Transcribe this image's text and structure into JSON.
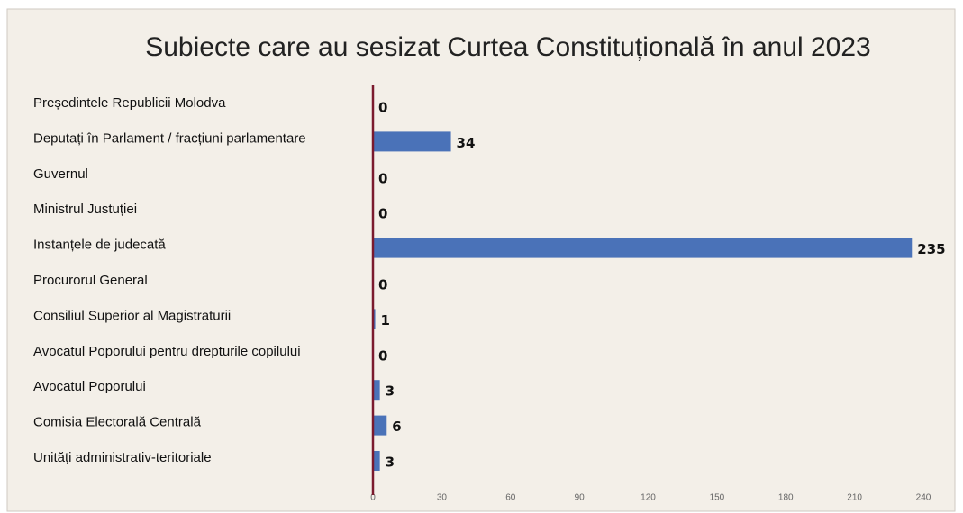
{
  "chart_data": {
    "type": "hbar",
    "title": "Subiecte care au sesizat Curtea Constituțională în anul 2023",
    "categories": [
      "Președintele Republicii Molodva",
      "Deputați în Parlament / fracțiuni parlamentare",
      "Guvernul",
      "Ministrul Justuției",
      "Instanțele de judecată",
      "Procurorul General",
      "Consiliul Superior al Magistraturii",
      "Avocatul Poporului pentru drepturile copilului",
      "Avocatul Poporului",
      "Comisia Electorală Centrală",
      "Unități administrativ-teritoriale"
    ],
    "values": [
      0,
      34,
      0,
      0,
      235,
      0,
      1,
      0,
      3,
      6,
      3
    ],
    "color": "#4a72b8",
    "xlim": [
      0,
      240
    ],
    "xticks": [
      0,
      30,
      60,
      90,
      120,
      150,
      180,
      210,
      240
    ]
  }
}
